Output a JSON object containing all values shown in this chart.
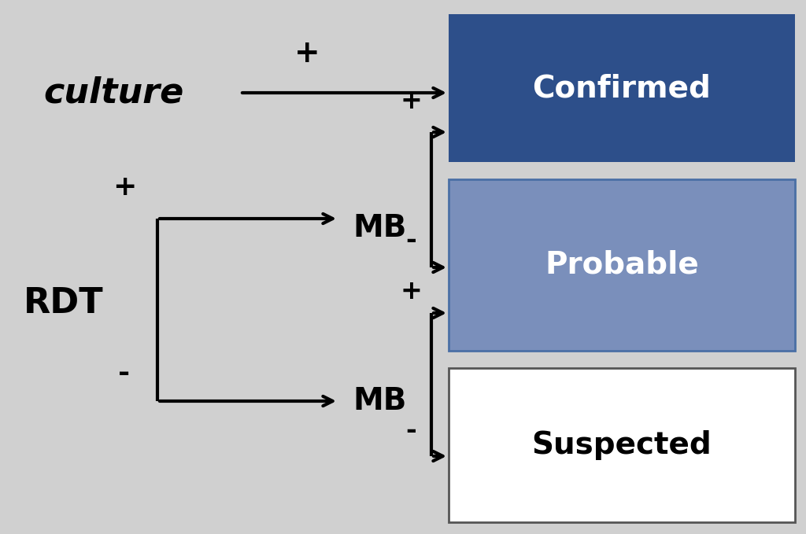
{
  "background_color": "#d0d0d0",
  "confirmed_color": "#2d4f8a",
  "probable_color": "#7a8fbb",
  "suspected_color": "#ffffff",
  "confirmed_text": "Confirmed",
  "probable_text": "Probable",
  "suspected_text": "Suspected",
  "culture_text": "culture",
  "rdt_text": "RDT",
  "mb_text": "MB",
  "plus_sign": "+",
  "minus_sign": "-",
  "box_text_color_dark": "#ffffff",
  "box_text_color_light": "#000000",
  "line_color": "#000000",
  "line_width": 3.0,
  "figsize": [
    10.24,
    6.79
  ],
  "dpi": 100
}
